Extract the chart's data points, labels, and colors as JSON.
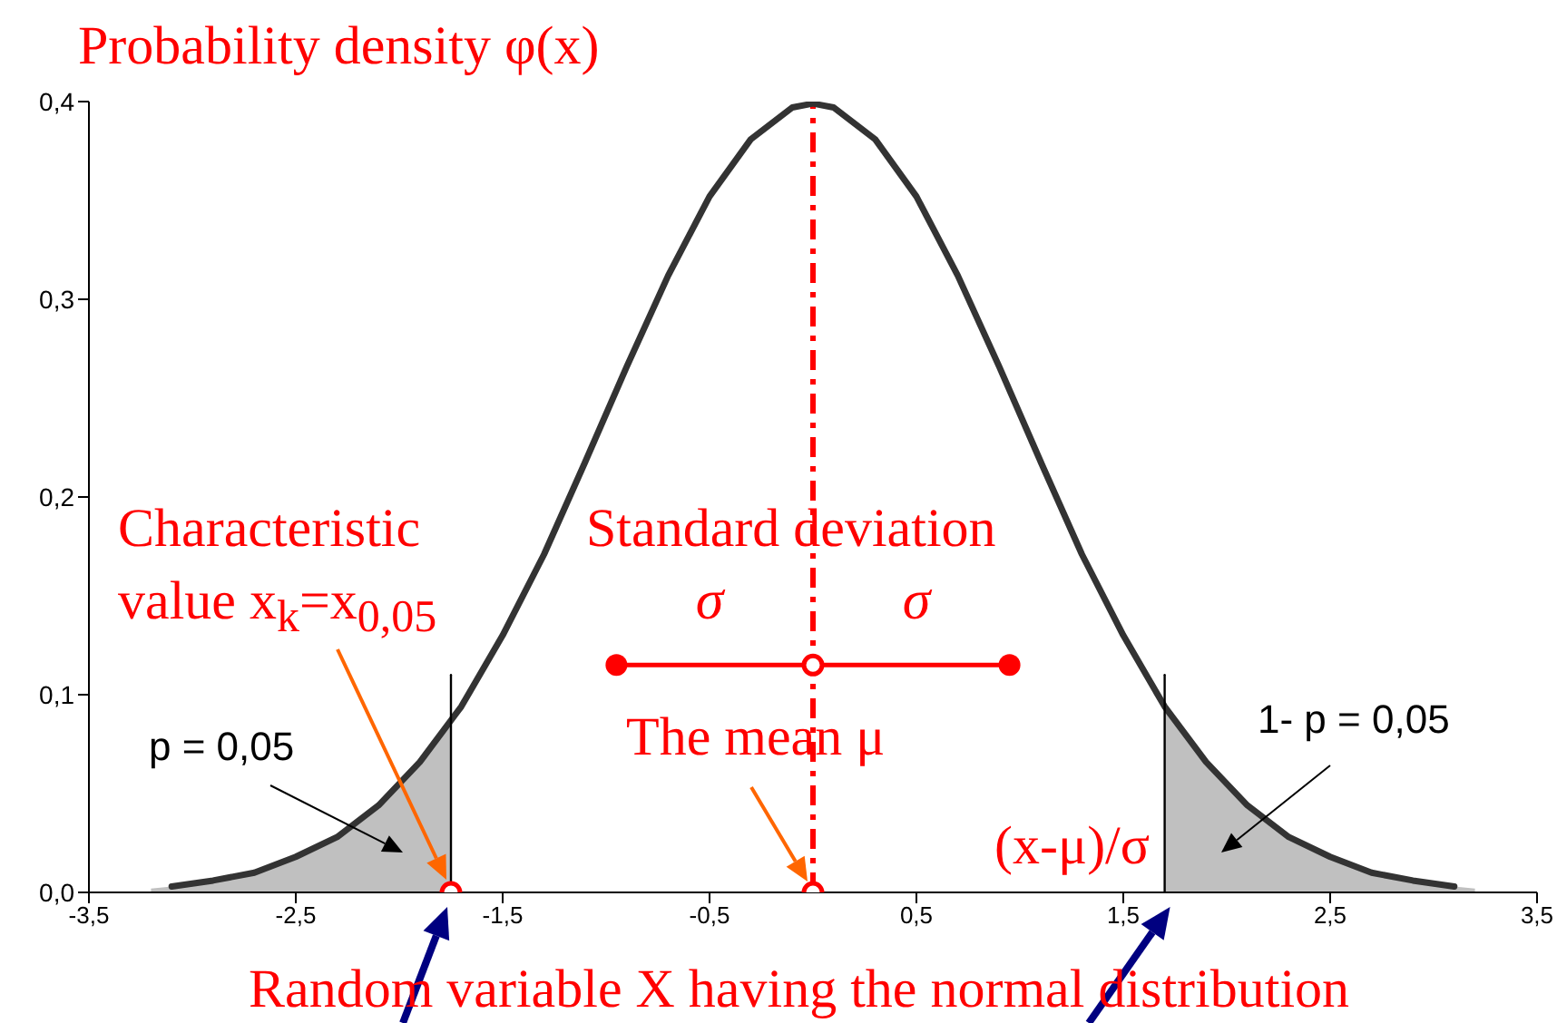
{
  "chart_data": {
    "type": "line",
    "ylabel": "Probability density φ(x)",
    "xlabel": "Random variable X having the normal distribution",
    "xlim": [
      -3.5,
      3.5
    ],
    "xticks": [
      {
        "value": -3.5,
        "label": "-3,5"
      },
      {
        "value": -2.5,
        "label": "-2,5"
      },
      {
        "value": -1.5,
        "label": "-1,5"
      },
      {
        "value": -0.5,
        "label": "-0,5"
      },
      {
        "value": 0.5,
        "label": "0,5"
      },
      {
        "value": 1.5,
        "label": "1,5"
      },
      {
        "value": 2.5,
        "label": "2,5"
      },
      {
        "value": 3.5,
        "label": "3,5"
      }
    ],
    "ylim": [
      0,
      0.4
    ],
    "yticks": [
      {
        "value": 0,
        "label": "0,0"
      },
      {
        "value": 0.1,
        "label": "0,1"
      },
      {
        "value": 0.2,
        "label": "0,2"
      },
      {
        "value": 0.3,
        "label": "0,3"
      },
      {
        "value": 0.4,
        "label": "0,4"
      }
    ],
    "series": [
      {
        "type": "area",
        "color": "#c0c0c0",
        "x": [
          -3.2,
          -3.1,
          -2.9,
          -2.7,
          -2.5,
          -2.3,
          -2.1,
          -1.9,
          -1.75
        ],
        "values": [
          0.002,
          0.003,
          0.006,
          0.01,
          0.018,
          0.028,
          0.044,
          0.066,
          0.087
        ]
      },
      {
        "type": "area",
        "color": "#c0c0c0",
        "x": [
          1.7,
          1.9,
          2.1,
          2.3,
          2.5,
          2.7,
          2.9,
          3.1,
          3.2
        ],
        "values": [
          0.094,
          0.066,
          0.044,
          0.028,
          0.018,
          0.01,
          0.006,
          0.003,
          0.002
        ]
      },
      {
        "type": "line",
        "color": "#333333",
        "x": [
          -3.1,
          -2.9,
          -2.7,
          -2.5,
          -2.3,
          -2.1,
          -1.9,
          -1.7,
          -1.5,
          -1.3,
          -1.1,
          -0.9,
          -0.7,
          -0.5,
          -0.3,
          -0.1,
          0,
          0.1,
          0.3,
          0.5,
          0.7,
          0.9,
          1.1,
          1.3,
          1.5,
          1.7,
          1.9,
          2.1,
          2.3,
          2.5,
          2.7,
          2.9,
          3.1
        ],
        "values": [
          0.003,
          0.006,
          0.01,
          0.018,
          0.028,
          0.044,
          0.066,
          0.094,
          0.13,
          0.171,
          0.218,
          0.266,
          0.312,
          0.352,
          0.381,
          0.397,
          0.399,
          0.397,
          0.381,
          0.352,
          0.312,
          0.266,
          0.218,
          0.171,
          0.13,
          0.094,
          0.066,
          0.044,
          0.028,
          0.018,
          0.01,
          0.006,
          0.003
        ]
      },
      {
        "type": "line",
        "color": "#000000",
        "x": [
          -1.75,
          -1.75
        ],
        "values": [
          0,
          0.11
        ]
      },
      {
        "type": "line",
        "color": "#000000",
        "x": [
          1.7,
          1.7
        ],
        "values": [
          0,
          0.11
        ]
      },
      {
        "type": "line",
        "color": "#ff0000",
        "x": [
          -0.95,
          0.95
        ],
        "values": [
          0.115,
          0.115
        ],
        "marker": "circle"
      },
      {
        "type": "scatter",
        "color": "#ff0000",
        "x": [
          -1.75,
          0,
          0
        ],
        "values": [
          0,
          0,
          0.115
        ],
        "marker": "circle"
      }
    ],
    "ref_lines": [
      {
        "axis": "x",
        "value": 0,
        "color": "#ff0000",
        "line_style": "dashed"
      }
    ],
    "annotations": [
      "Characteristic value x$_{k}$=x$_{0,05}$",
      "Standard deviation",
      {
        "text": "σ",
        "x": -0.5,
        "y": 0.115
      },
      {
        "text": "σ",
        "x": 0.5,
        "y": 0.115
      },
      {
        "text": "The mean μ",
        "x": 0,
        "y": 0
      },
      "p = 0,05",
      "1- p = 0,05",
      "(x-μ)/σ"
    ]
  }
}
